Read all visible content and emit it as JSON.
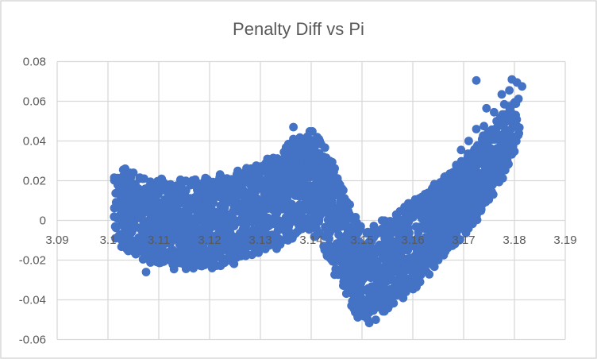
{
  "window": {
    "background": "#FFFFFF",
    "border_color": "#D9D9D9"
  },
  "chart_data": {
    "type": "scatter",
    "title": "Penalty Diff vs Pi",
    "xlabel": "",
    "ylabel": "",
    "xlim": [
      3.09,
      3.19
    ],
    "ylim": [
      -0.06,
      0.08
    ],
    "x_tick_values": [
      3.09,
      3.1,
      3.11,
      3.12,
      3.13,
      3.14,
      3.15,
      3.16,
      3.17,
      3.18,
      3.19
    ],
    "x_tick_labels": [
      "3.09",
      "3.1",
      "3.11",
      "3.12",
      "3.13",
      "3.14",
      "3.15",
      "3.16",
      "3.17",
      "3.18",
      "3.19"
    ],
    "y_tick_values": [
      0.08,
      0.06,
      0.04,
      0.02,
      0,
      -0.02,
      -0.04,
      -0.06
    ],
    "y_tick_labels": [
      "0.08",
      "0.06",
      "0.04",
      "0.02",
      "0",
      "-0.02",
      "-0.04",
      "-0.06"
    ],
    "grid": true,
    "legend": false,
    "marker_color": "#4472C4",
    "marker_radius_px": 5.4,
    "gridline_color": "#D9D9D9",
    "axis_text_color": "#595959",
    "title_color": "#595959",
    "series": [
      {
        "representation": "dense-band",
        "description": "Dense scatter mass: flat noisy band near y=0 from x=3.101 to 3.14, peaking at (3.14, 0.044), plunging in a V to a minimum at (3.1505, -0.052), then rising steeply to about (3.181, 0.068).",
        "n_points": 3000,
        "seed": 13,
        "edge_jitter": 0.002,
        "band_envelope": [
          [
            3.101,
            -0.006,
            0.024,
            0.3
          ],
          [
            3.103,
            -0.013,
            0.026,
            0.8
          ],
          [
            3.106,
            -0.019,
            0.022,
            1
          ],
          [
            3.11,
            -0.022,
            0.02,
            1
          ],
          [
            3.115,
            -0.023,
            0.019,
            1
          ],
          [
            3.12,
            -0.023,
            0.021,
            1
          ],
          [
            3.125,
            -0.021,
            0.024,
            1
          ],
          [
            3.129,
            -0.017,
            0.028,
            1
          ],
          [
            3.132,
            -0.014,
            0.032,
            1
          ],
          [
            3.135,
            -0.011,
            0.037,
            1
          ],
          [
            3.138,
            -0.007,
            0.042,
            1
          ],
          [
            3.14,
            -0.005,
            0.044,
            1
          ],
          [
            3.1415,
            -0.009,
            0.044,
            1
          ],
          [
            3.143,
            -0.018,
            0.037,
            1
          ],
          [
            3.145,
            -0.028,
            0.024,
            1
          ],
          [
            3.147,
            -0.038,
            0.01,
            1
          ],
          [
            3.149,
            -0.047,
            -0.001,
            1
          ],
          [
            3.1505,
            -0.052,
            -0.005,
            0.9
          ],
          [
            3.152,
            -0.05,
            -0.004,
            0.9
          ],
          [
            3.1545,
            -0.045,
            0.0,
            1
          ],
          [
            3.157,
            -0.04,
            0.004,
            1
          ],
          [
            3.16,
            -0.034,
            0.009,
            1
          ],
          [
            3.163,
            -0.027,
            0.015,
            1
          ],
          [
            3.166,
            -0.019,
            0.021,
            1
          ],
          [
            3.169,
            -0.011,
            0.028,
            1
          ],
          [
            3.172,
            -0.002,
            0.036,
            1
          ],
          [
            3.175,
            0.008,
            0.044,
            0.85
          ],
          [
            3.1775,
            0.02,
            0.053,
            0.6
          ],
          [
            3.1795,
            0.03,
            0.06,
            0.4
          ],
          [
            3.181,
            0.042,
            0.066,
            0.25
          ]
        ],
        "extra_points": [
          [
            3.1075,
            -0.026
          ],
          [
            3.113,
            -0.0245
          ],
          [
            3.1205,
            -0.024
          ],
          [
            3.1615,
            -0.0265
          ],
          [
            3.1365,
            0.047
          ],
          [
            3.1725,
            0.0705
          ],
          [
            3.1795,
            0.071
          ],
          [
            3.1805,
            0.0695
          ],
          [
            3.1815,
            0.0675
          ],
          [
            3.1775,
            0.0635
          ],
          [
            3.179,
            0.0655
          ],
          [
            3.1745,
            0.0565
          ],
          [
            3.176,
            0.0545
          ],
          [
            3.178,
            0.0585
          ],
          [
            3.1725,
            0.046
          ],
          [
            3.174,
            0.0475
          ],
          [
            3.1765,
            0.05
          ],
          [
            3.171,
            0.04
          ],
          [
            3.1695,
            0.0355
          ],
          [
            3.1015,
            0.021
          ],
          [
            3.103,
            0.0255
          ],
          [
            3.105,
            0.024
          ]
        ]
      }
    ]
  }
}
